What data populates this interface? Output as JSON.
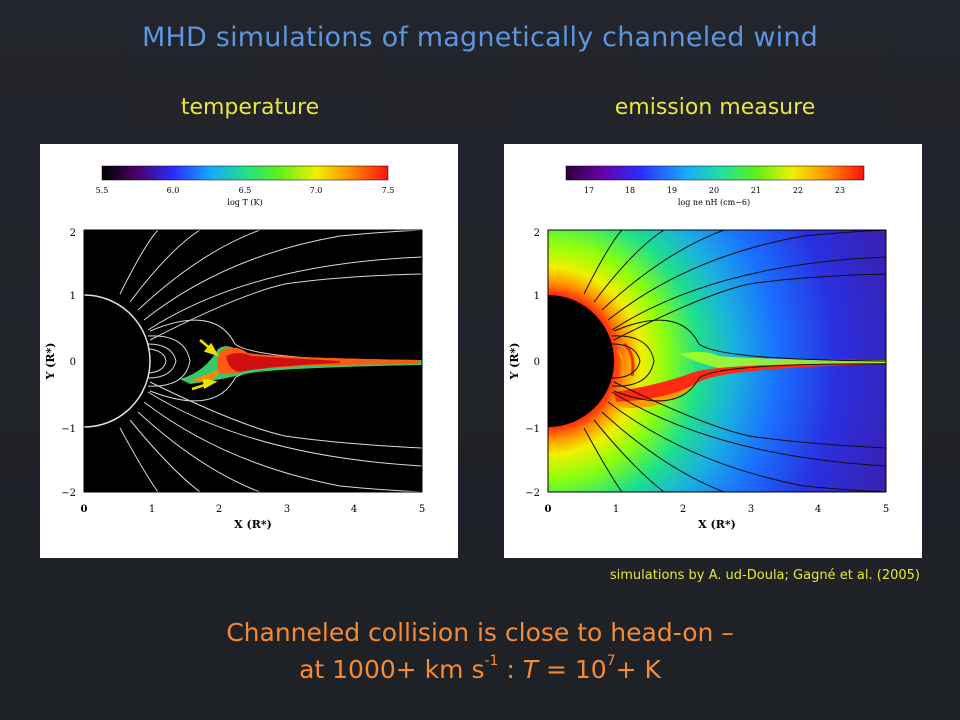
{
  "slide": {
    "title": "MHD simulations of magnetically channeled wind",
    "credit": "simulations by A. ud-Doula; Gagné et al. (2005)",
    "caption_line1": "Channeled collision is close to head-on –",
    "caption_line2_pre": "at 1000+ km s",
    "caption_line2_sup1": "-1",
    "caption_line2_mid": " : ",
    "caption_line2_var": "T",
    "caption_line2_eq": " = 10",
    "caption_line2_sup2": "7",
    "caption_line2_post": "+ K",
    "colors": {
      "title": "#5d95de",
      "labels": "#e8e63c",
      "caption": "#f58a33",
      "background": "#1f2227"
    }
  },
  "panels": {
    "left": {
      "label": "temperature",
      "colorbar_ticks": [
        "5.5",
        "6.0",
        "6.5",
        "7.0",
        "7.5"
      ],
      "colorbar_label": "log T (K)",
      "x_axis_label": "X (R*)",
      "y_axis_label": "Y (R*)",
      "x_ticks": [
        "0",
        "1",
        "2",
        "3",
        "4",
        "5"
      ],
      "y_ticks": [
        "2",
        "1",
        "0",
        "−1",
        "−2"
      ]
    },
    "right": {
      "label": "emission measure",
      "colorbar_ticks": [
        "17",
        "18",
        "19",
        "20",
        "21",
        "22",
        "23"
      ],
      "colorbar_label": "log ne nH (cm−6)",
      "x_axis_label": "X (R*)",
      "y_axis_label": "Y (R*)",
      "x_ticks": [
        "0",
        "1",
        "2",
        "3",
        "4",
        "5"
      ],
      "y_ticks": [
        "2",
        "1",
        "0",
        "−1",
        "−2"
      ]
    }
  }
}
